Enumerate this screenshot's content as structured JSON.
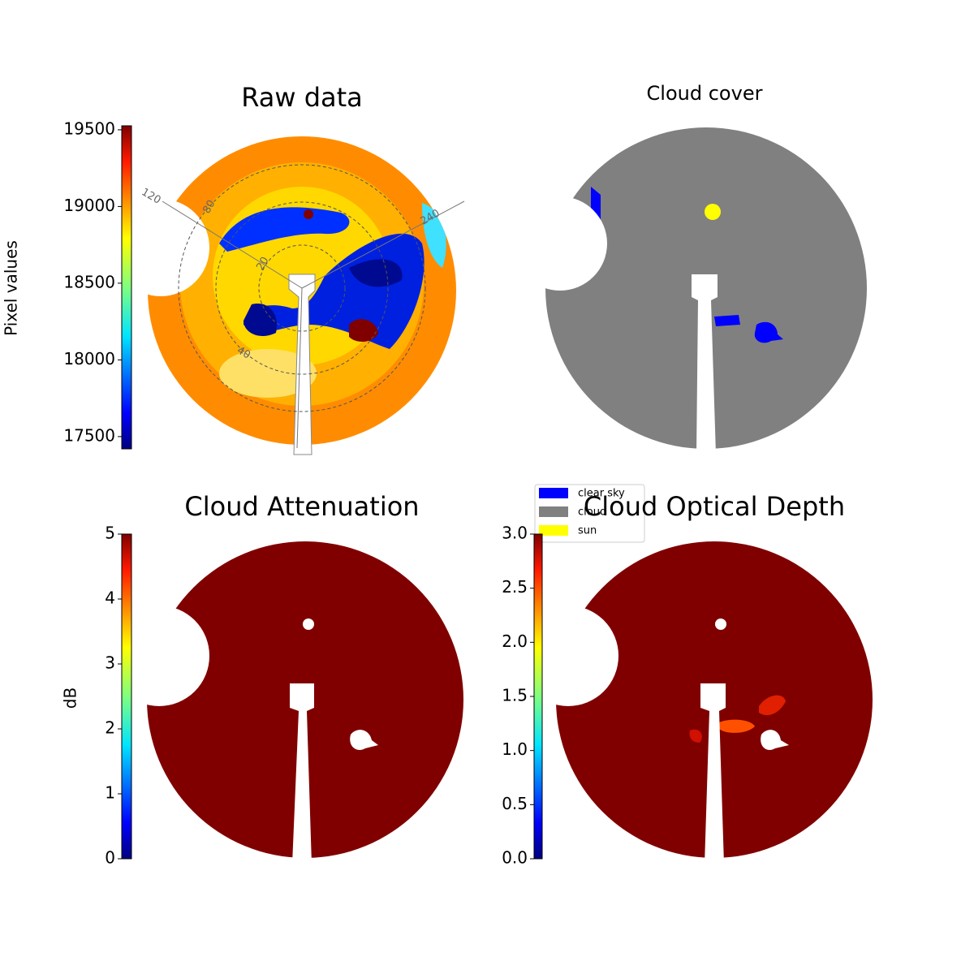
{
  "chart_data": [
    {
      "type": "image",
      "title": "Raw data",
      "polar_labels": [
        "120",
        "240",
        "80",
        "20",
        "40"
      ],
      "colorbar": {
        "label": "Pixel values",
        "lim": [
          17420,
          19526
        ],
        "ticks": [
          17500,
          18000,
          18500,
          19000,
          19500
        ]
      }
    },
    {
      "type": "image",
      "title": "Cloud cover",
      "series": [
        {
          "name": "clear sky",
          "color": "#0000ff"
        },
        {
          "name": "cloud",
          "color": "#808080"
        },
        {
          "name": "sun",
          "color": "#ffff00"
        }
      ]
    },
    {
      "type": "image",
      "title": "Cloud Attenuation",
      "colorbar": {
        "label": "dB",
        "lim": [
          0,
          5
        ],
        "ticks": [
          0,
          1,
          2,
          3,
          4,
          5
        ]
      }
    },
    {
      "type": "image",
      "title": "Cloud Optical Depth",
      "colorbar": {
        "lim": [
          0,
          3
        ],
        "ticks": [
          {
            "value": 0,
            "label": "0.0"
          },
          {
            "value": 0.5,
            "label": "0.5"
          },
          {
            "value": 1,
            "label": "1.0"
          },
          {
            "value": 1.5,
            "label": "1.5"
          },
          {
            "value": 2,
            "label": "2.0"
          },
          {
            "value": 2.5,
            "label": "2.5"
          },
          {
            "value": 3,
            "label": "3.0"
          }
        ]
      }
    }
  ]
}
